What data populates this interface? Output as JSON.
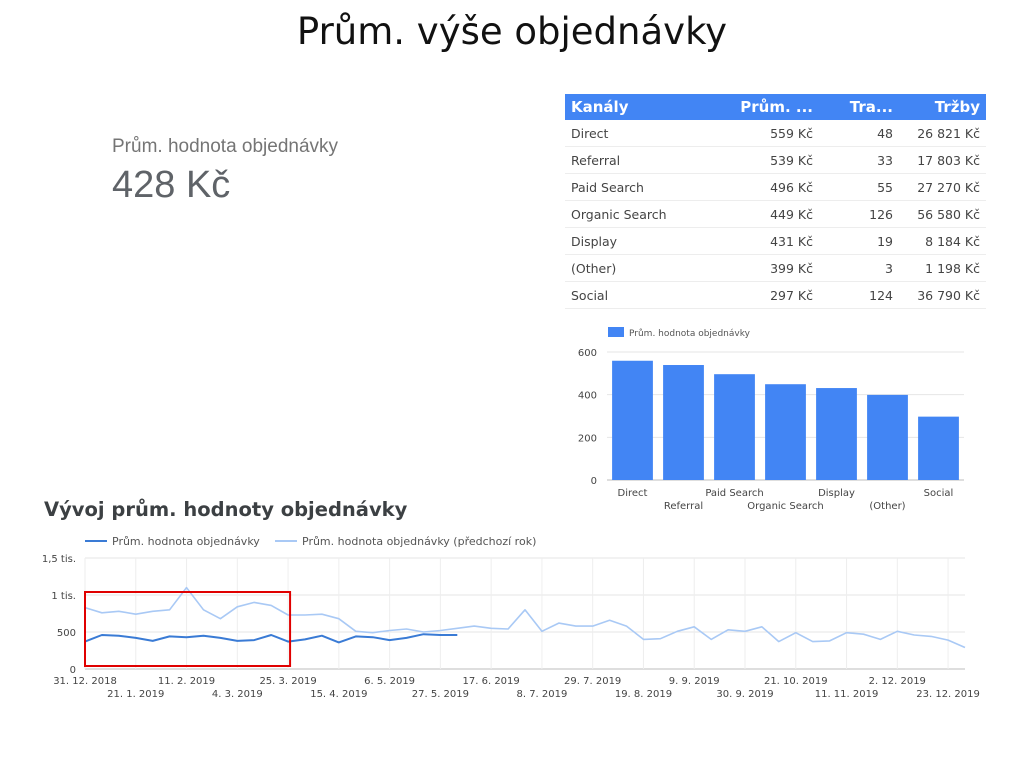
{
  "page": {
    "title": "Prům. výše objednávky",
    "section_title": "Vývoj prům. hodnoty objednávky"
  },
  "scorecard": {
    "label": "Prům. hodnota objednávky",
    "value": "428 Kč"
  },
  "colors": {
    "accent": "#4285f4",
    "line_current": "#3a7bd5",
    "line_previous": "#a9c9f5",
    "highlight": "#e00000"
  },
  "table": {
    "headers": [
      "Kanály",
      "Prům. ...",
      "Tra...",
      "Tržby"
    ],
    "rows": [
      [
        "Direct",
        "559 Kč",
        "48",
        "26 821 Kč"
      ],
      [
        "Referral",
        "539 Kč",
        "33",
        "17 803 Kč"
      ],
      [
        "Paid Search",
        "496 Kč",
        "55",
        "27 270 Kč"
      ],
      [
        "Organic Search",
        "449 Kč",
        "126",
        "56 580 Kč"
      ],
      [
        "Display",
        "431 Kč",
        "19",
        "8 184 Kč"
      ],
      [
        "(Other)",
        "399 Kč",
        "3",
        "1 198 Kč"
      ],
      [
        "Social",
        "297 Kč",
        "124",
        "36 790 Kč"
      ]
    ]
  },
  "chart_data": [
    {
      "type": "bar",
      "categories": [
        "Direct",
        "Referral",
        "Paid Search",
        "Organic Search",
        "Display",
        "(Other)",
        "Social"
      ],
      "series": [
        {
          "name": "Prům. hodnota objednávky",
          "values": [
            559,
            539,
            496,
            449,
            431,
            399,
            297
          ]
        }
      ],
      "ylim": [
        0,
        600
      ],
      "yticks": [
        "0",
        "200",
        "400",
        "600"
      ],
      "grid": true,
      "legend": "top-left"
    },
    {
      "type": "line",
      "x_ticks": [
        "31. 12. 2018",
        "21. 1. 2019",
        "11. 2. 2019",
        "4. 3. 2019",
        "25. 3. 2019",
        "15. 4. 2019",
        "6. 5. 2019",
        "27. 5. 2019",
        "17. 6. 2019",
        "8. 7. 2019",
        "29. 7. 2019",
        "19. 8. 2019",
        "9. 9. 2019",
        "30. 9. 2019",
        "21. 10. 2019",
        "11. 11. 2019",
        "2. 12. 2019",
        "23. 12. 2019"
      ],
      "yticks": [
        "0",
        "500",
        "1 tis.",
        "1,5 tis."
      ],
      "ylim": [
        0,
        1500
      ],
      "grid": true,
      "legend": "top-left",
      "series": [
        {
          "name": "Prům. hodnota objednávky",
          "values": [
            370,
            460,
            450,
            420,
            380,
            440,
            430,
            450,
            420,
            380,
            390,
            460,
            370,
            400,
            450,
            360,
            440,
            430,
            390,
            420,
            470,
            460,
            460
          ]
        },
        {
          "name": "Prům. hodnota objednávky (předchozí rok)",
          "values": [
            830,
            760,
            780,
            740,
            780,
            800,
            1100,
            800,
            680,
            840,
            900,
            860,
            730,
            730,
            740,
            680,
            510,
            490,
            520,
            540,
            500,
            520,
            550,
            580,
            550,
            540,
            800,
            510,
            620,
            580,
            580,
            660,
            580,
            400,
            410,
            510,
            570,
            400,
            530,
            510,
            570,
            370,
            490,
            370,
            380,
            490,
            470,
            400,
            510,
            460,
            440,
            390,
            290
          ]
        }
      ]
    }
  ]
}
